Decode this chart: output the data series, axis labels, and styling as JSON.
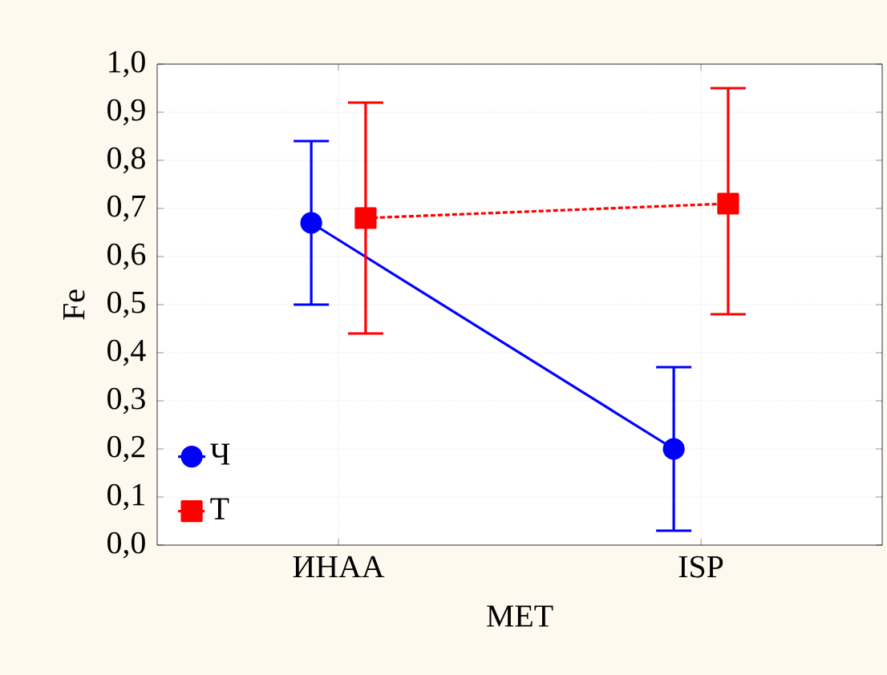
{
  "chart_data": {
    "type": "line",
    "xlabel": "МЕТ",
    "ylabel": "Fe",
    "categories": [
      "ИНАА",
      "ISP"
    ],
    "series": [
      {
        "name": "Ч",
        "color": "#0000ff",
        "values": [
          0.67,
          0.2
        ],
        "errors": [
          [
            0.5,
            0.84
          ],
          [
            0.03,
            0.37
          ]
        ],
        "marker": "circle",
        "line_style": "solid"
      },
      {
        "name": "Т",
        "color": "#ff0000",
        "values": [
          0.68,
          0.71
        ],
        "errors": [
          [
            0.44,
            0.92
          ],
          [
            0.48,
            0.95
          ]
        ],
        "marker": "square",
        "line_style": "dashed"
      }
    ],
    "ylim": [
      0,
      1
    ],
    "yticks": [
      {
        "value": 0,
        "label": "0,0"
      },
      {
        "value": 0.1,
        "label": "0,1"
      },
      {
        "value": 0.2,
        "label": "0,2"
      },
      {
        "value": 0.3,
        "label": "0,3"
      },
      {
        "value": 0.4,
        "label": "0,4"
      },
      {
        "value": 0.5,
        "label": "0,5"
      },
      {
        "value": 0.6,
        "label": "0,6"
      },
      {
        "value": 0.7,
        "label": "0,7"
      },
      {
        "value": 0.8,
        "label": "0,8"
      },
      {
        "value": 0.9,
        "label": "0,9"
      },
      {
        "value": 1,
        "label": "1,0"
      }
    ],
    "grid": true,
    "legend": "bottom left"
  }
}
